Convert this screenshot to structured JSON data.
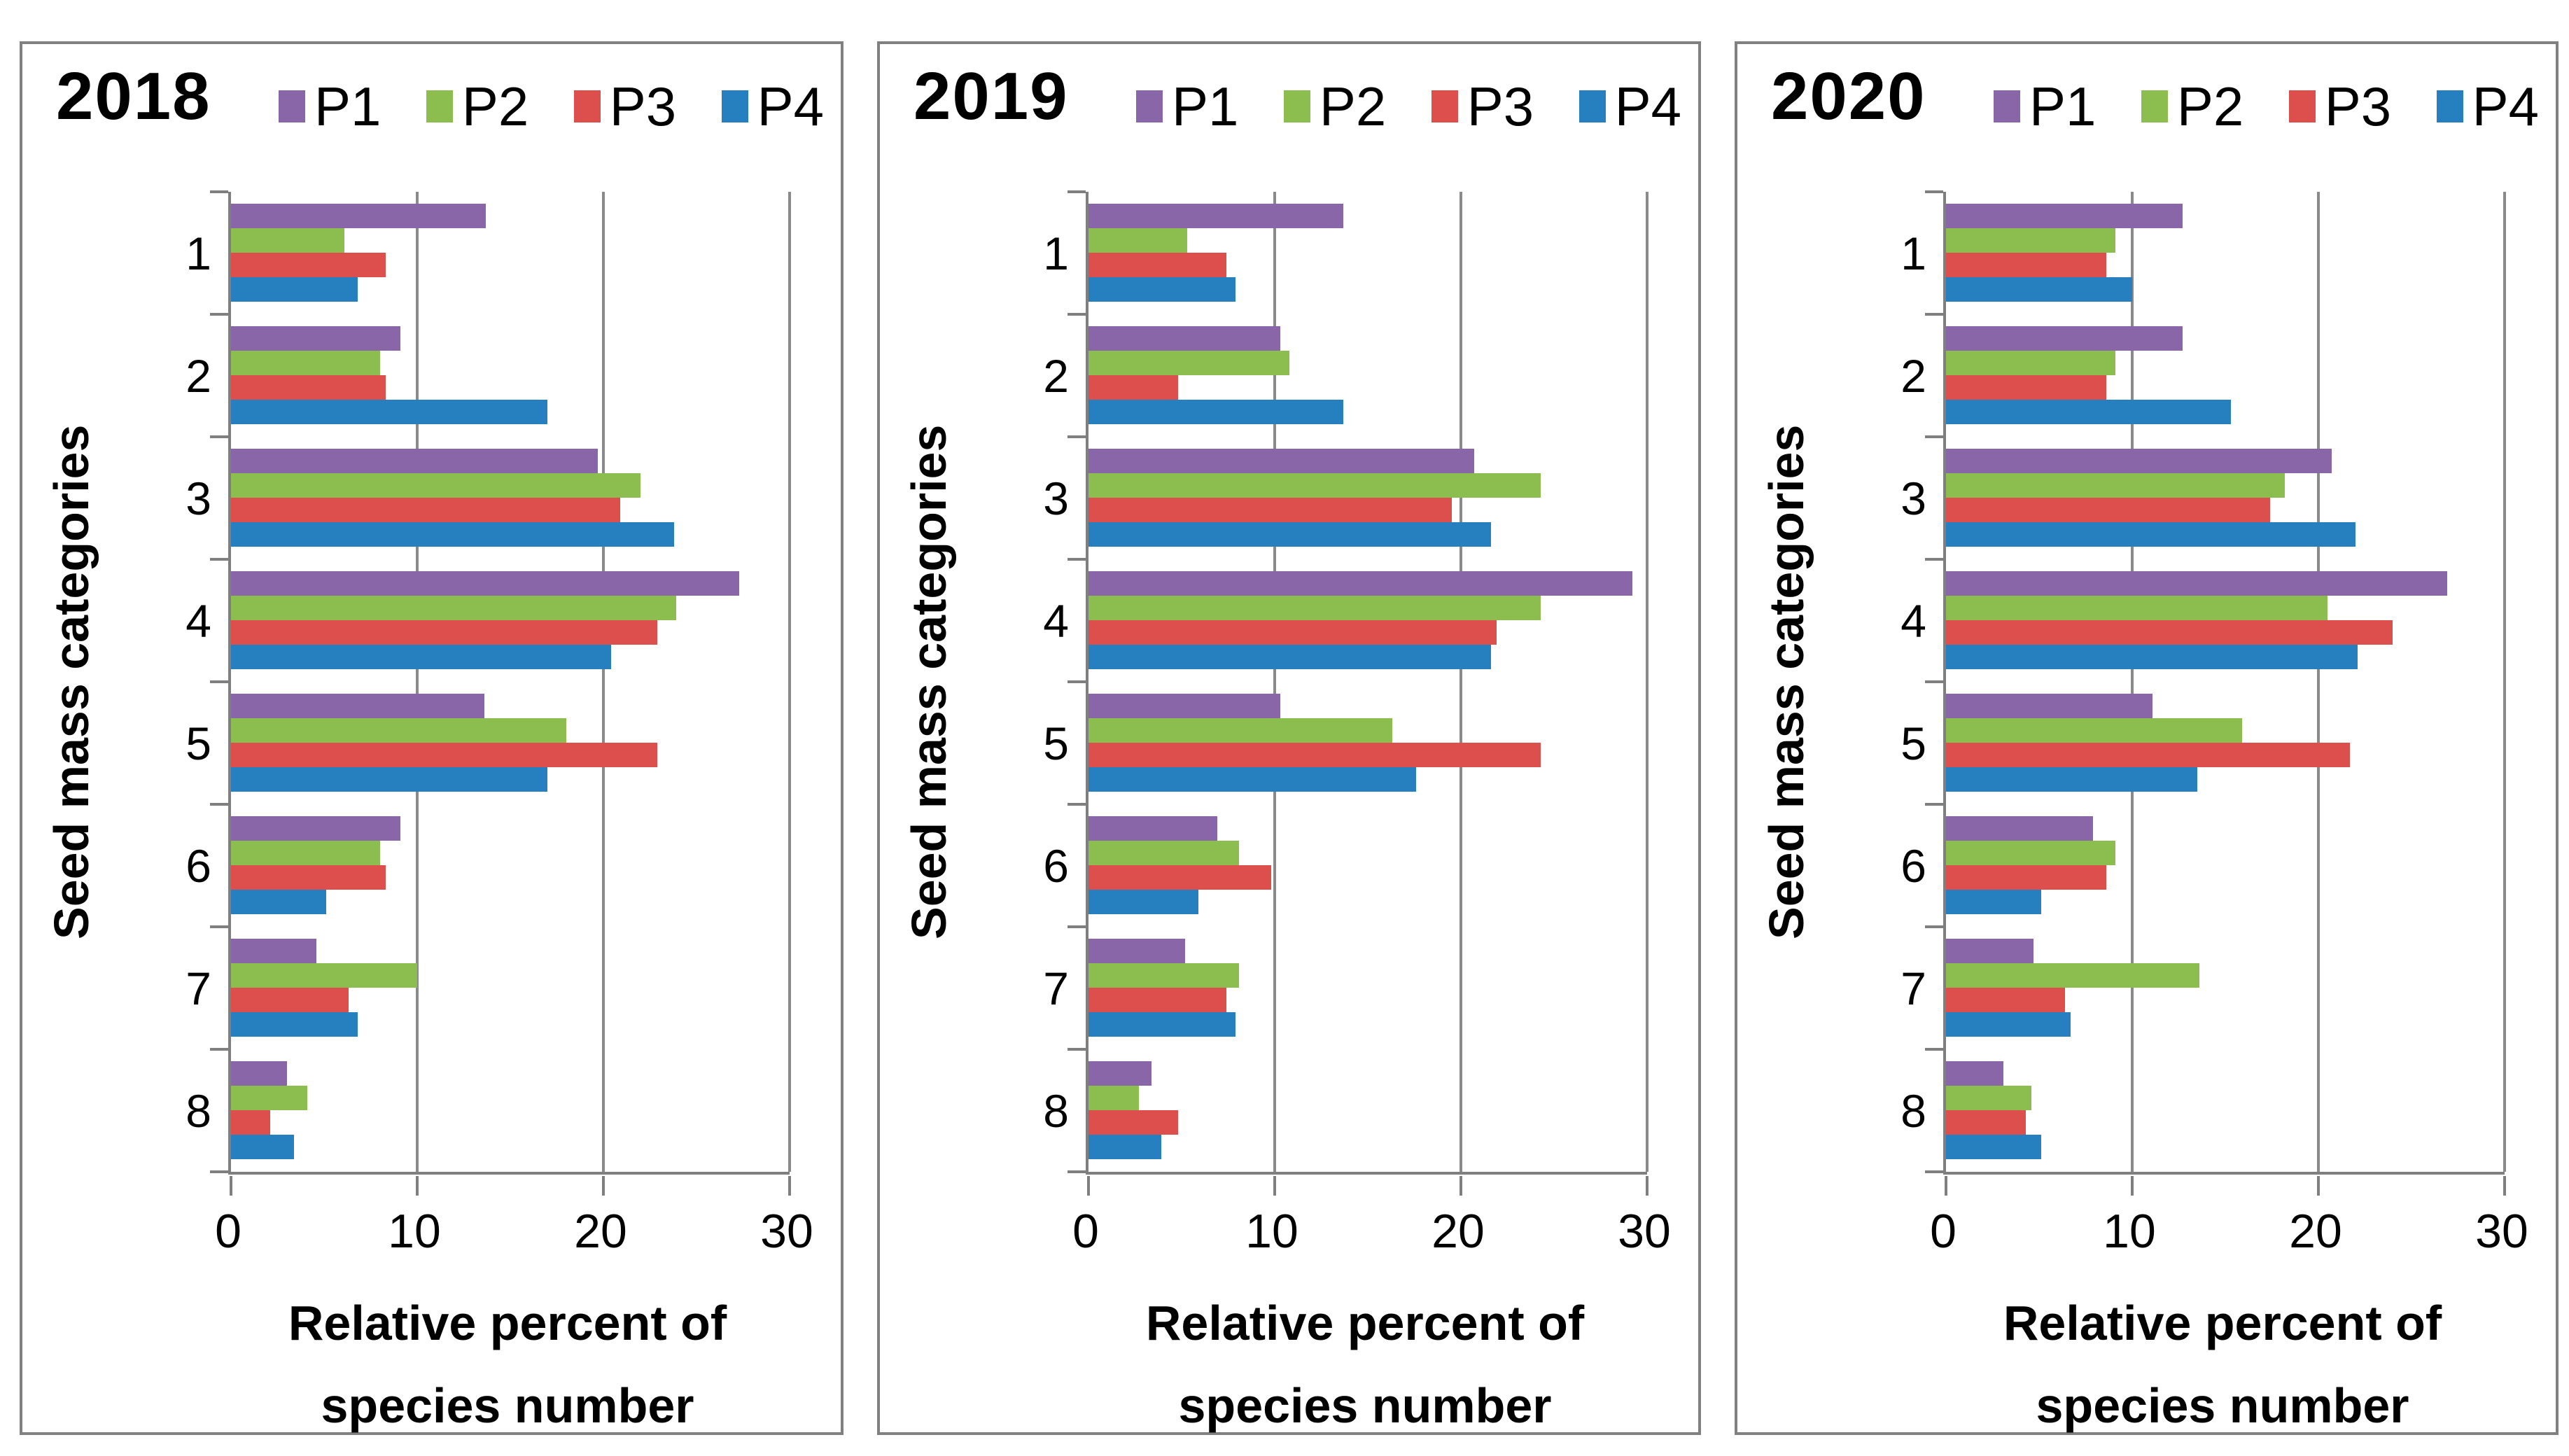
{
  "page": {
    "background": "#ffffff",
    "panel_border_color": "#808080",
    "grid_color": "#8a8a8a",
    "axis_color": "#7f7f7f",
    "text_color": "#000000"
  },
  "chart_data": [
    {
      "type": "bar",
      "orientation": "horizontal",
      "title": "2018",
      "ylabel": "Seed mass categories",
      "xlabel": "Relative percent of species number",
      "xlabel_lines": [
        "Relative percent of",
        "species number"
      ],
      "categories": [
        "1",
        "2",
        "3",
        "4",
        "5",
        "6",
        "7",
        "8"
      ],
      "xlim": [
        0,
        30
      ],
      "x_ticks": [
        0,
        10,
        20,
        30
      ],
      "grid": true,
      "legend_position": "top",
      "series": [
        {
          "name": "P1",
          "color": "#8966A8",
          "values": [
            13.7,
            9.1,
            19.7,
            27.3,
            13.6,
            9.1,
            4.6,
            3.0
          ]
        },
        {
          "name": "P2",
          "color": "#8CBD4F",
          "values": [
            6.1,
            8.0,
            22.0,
            23.9,
            18.0,
            8.0,
            10.0,
            4.1
          ]
        },
        {
          "name": "P3",
          "color": "#DD4F4C",
          "values": [
            8.3,
            8.3,
            20.9,
            22.9,
            22.9,
            8.3,
            6.3,
            2.1
          ]
        },
        {
          "name": "P4",
          "color": "#2680BF",
          "values": [
            6.8,
            17.0,
            23.8,
            20.4,
            17.0,
            5.1,
            6.8,
            3.4
          ]
        }
      ]
    },
    {
      "type": "bar",
      "orientation": "horizontal",
      "title": "2019",
      "ylabel": "Seed mass categories",
      "xlabel": "Relative percent of species number",
      "xlabel_lines": [
        "Relative percent of",
        "species number"
      ],
      "categories": [
        "1",
        "2",
        "3",
        "4",
        "5",
        "6",
        "7",
        "8"
      ],
      "xlim": [
        0,
        30
      ],
      "x_ticks": [
        0,
        10,
        20,
        30
      ],
      "grid": true,
      "legend_position": "top",
      "series": [
        {
          "name": "P1",
          "color": "#8966A8",
          "values": [
            13.7,
            10.3,
            20.7,
            29.2,
            10.3,
            6.9,
            5.2,
            3.4
          ]
        },
        {
          "name": "P2",
          "color": "#8CBD4F",
          "values": [
            5.3,
            10.8,
            24.3,
            24.3,
            16.3,
            8.1,
            8.1,
            2.7
          ]
        },
        {
          "name": "P3",
          "color": "#DD4F4C",
          "values": [
            7.4,
            4.8,
            19.5,
            21.9,
            24.3,
            9.8,
            7.4,
            4.8
          ]
        },
        {
          "name": "P4",
          "color": "#2680BF",
          "values": [
            7.9,
            13.7,
            21.6,
            21.6,
            17.6,
            5.9,
            7.9,
            3.9
          ]
        }
      ]
    },
    {
      "type": "bar",
      "orientation": "horizontal",
      "title": "2020",
      "ylabel": "Seed mass categories",
      "xlabel": "Relative percent of species number",
      "xlabel_lines": [
        "Relative percent of",
        "species number"
      ],
      "categories": [
        "1",
        "2",
        "3",
        "4",
        "5",
        "6",
        "7",
        "8"
      ],
      "xlim": [
        0,
        30
      ],
      "x_ticks": [
        0,
        10,
        20,
        30
      ],
      "grid": true,
      "legend_position": "top",
      "series": [
        {
          "name": "P1",
          "color": "#8966A8",
          "values": [
            12.7,
            12.7,
            20.7,
            26.9,
            11.1,
            7.9,
            4.7,
            3.1
          ]
        },
        {
          "name": "P2",
          "color": "#8CBD4F",
          "values": [
            9.1,
            9.1,
            18.2,
            20.5,
            15.9,
            9.1,
            13.6,
            4.6
          ]
        },
        {
          "name": "P3",
          "color": "#DD4F4C",
          "values": [
            8.6,
            8.6,
            17.4,
            24.0,
            21.7,
            8.6,
            6.4,
            4.3
          ]
        },
        {
          "name": "P4",
          "color": "#2680BF",
          "values": [
            10.0,
            15.3,
            22.0,
            22.1,
            13.5,
            5.1,
            6.7,
            5.1
          ]
        }
      ]
    }
  ]
}
